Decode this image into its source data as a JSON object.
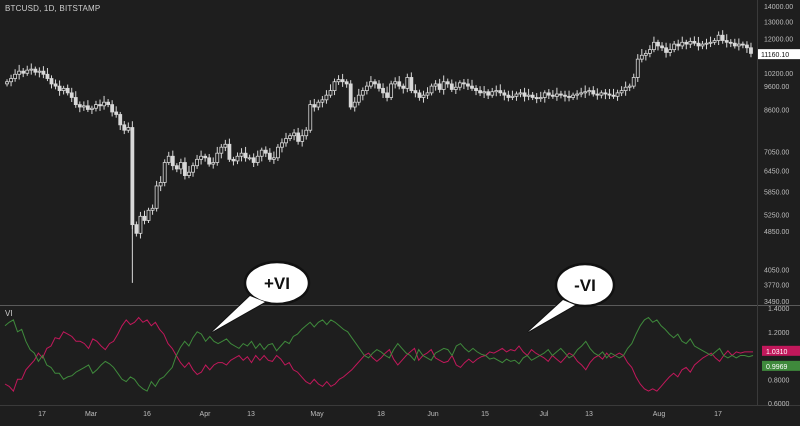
{
  "header": {
    "symbol": "BTCUSD, 1D, BITSTAMP"
  },
  "indicator": {
    "label": "VI"
  },
  "callouts": {
    "plus": "+VI",
    "minus": "-VI"
  },
  "colors": {
    "background": "#1e1e1e",
    "candle": "#d8d8d8",
    "plus_vi": "#3f8a3c",
    "minus_vi": "#c2185b",
    "price_badge": "#ffffff",
    "axis_text": "#bdbdbd",
    "separator": "#5a5a5a"
  },
  "chart_data": [
    {
      "type": "candlestick",
      "title": "BTCUSD, 1D, BITSTAMP",
      "scale": "log",
      "ylim": [
        3490,
        14000
      ],
      "yticks": [
        "14000.00",
        "13000.00",
        "12000.00",
        "10200.00",
        "9600.00",
        "8600.00",
        "7050.00",
        "6450.00",
        "5850.00",
        "5250.00",
        "4850.00",
        "4050.00",
        "3770.00",
        "3490.00"
      ],
      "last_price": "11160.10",
      "x_tick_labels": [
        "17",
        "Mar",
        "16",
        "Apr",
        "13",
        "May",
        "18",
        "Jun",
        "15",
        "Jul",
        "13",
        "Aug",
        "17"
      ],
      "x_range_days": [
        "2020-02-06",
        "2020-08-23"
      ],
      "closes": [
        9800,
        9950,
        10150,
        10300,
        10200,
        10350,
        10400,
        10250,
        10300,
        10150,
        9950,
        9700,
        9600,
        9400,
        9500,
        9300,
        9100,
        8800,
        8700,
        8750,
        8600,
        8650,
        8800,
        8750,
        8900,
        8800,
        8500,
        8400,
        8000,
        7800,
        7900,
        5000,
        4800,
        5200,
        5100,
        5350,
        5400,
        6000,
        6100,
        6700,
        6900,
        6600,
        6500,
        6700,
        6300,
        6400,
        6600,
        6800,
        6900,
        6850,
        6650,
        6700,
        7000,
        7200,
        7300,
        6800,
        6750,
        6900,
        7000,
        6850,
        6850,
        6700,
        6900,
        7100,
        7000,
        6800,
        6850,
        7200,
        7350,
        7500,
        7600,
        7700,
        7400,
        7600,
        7800,
        8800,
        8700,
        8900,
        9000,
        9200,
        9400,
        9800,
        9900,
        9800,
        9700,
        8700,
        8900,
        9200,
        9400,
        9600,
        9800,
        9700,
        9500,
        9300,
        9100,
        9700,
        9800,
        9600,
        9500,
        10000,
        9400,
        9300,
        9100,
        9200,
        9300,
        9600,
        9700,
        9450,
        9800,
        9700,
        9450,
        9550,
        9750,
        9700,
        9600,
        9500,
        9400,
        9300,
        9350,
        9200,
        9350,
        9400,
        9300,
        9200,
        9100,
        9150,
        9250,
        9300,
        9150,
        9200,
        9100,
        9050,
        9100,
        9300,
        9200,
        9150,
        9250,
        9200,
        9150,
        9100,
        9200,
        9250,
        9300,
        9350,
        9400,
        9250,
        9200,
        9300,
        9250,
        9200,
        9150,
        9300,
        9400,
        9550,
        9600,
        10000,
        10900,
        11100,
        11200,
        11400,
        11800,
        11600,
        11500,
        11250,
        11400,
        11700,
        11600,
        11800,
        11700,
        11850,
        11750,
        11600,
        11700,
        11750,
        11800,
        11900,
        12200,
        11900,
        11800,
        11750,
        11600,
        11700,
        11650,
        11500,
        11200
      ]
    },
    {
      "type": "line",
      "title": "VI",
      "ylim": [
        0.6,
        1.4
      ],
      "yticks": [
        "1.4000",
        "1.2000",
        "0.8000",
        "0.6000"
      ],
      "last_values": {
        "minus": "1.0310",
        "plus": "0.9969"
      },
      "series": [
        {
          "name": "+VI",
          "values": [
            1.25,
            1.28,
            1.3,
            1.2,
            1.22,
            1.12,
            1.05,
            1.02,
            0.95,
            1.0,
            0.92,
            0.9,
            0.85,
            0.85,
            0.8,
            0.82,
            0.83,
            0.86,
            0.88,
            0.9,
            0.92,
            0.85,
            0.88,
            0.92,
            0.95,
            0.93,
            0.9,
            0.85,
            0.8,
            0.78,
            0.82,
            0.8,
            0.75,
            0.72,
            0.7,
            0.78,
            0.74,
            0.8,
            0.82,
            0.86,
            0.9,
            1.0,
            1.07,
            1.12,
            1.08,
            1.15,
            1.2,
            1.18,
            1.12,
            1.16,
            1.12,
            1.1,
            1.12,
            1.14,
            1.1,
            1.08,
            1.06,
            1.1,
            1.08,
            1.12,
            1.06,
            1.1,
            1.05,
            1.09,
            1.1,
            1.04,
            1.08,
            1.12,
            1.1,
            1.16,
            1.18,
            1.22,
            1.25,
            1.28,
            1.24,
            1.28,
            1.3,
            1.26,
            1.3,
            1.28,
            1.25,
            1.22,
            1.2,
            1.15,
            1.1,
            1.05,
            1.0,
            0.98,
            1.02,
            1.05,
            1.03,
            1.0,
            0.98,
            1.05,
            1.1,
            1.06,
            1.02,
            1.0,
            0.96,
            1.05,
            1.0,
            0.98,
            0.96,
            1.02,
            1.04,
            1.06,
            1.05,
            1.0,
            1.08,
            1.1,
            1.06,
            1.03,
            1.06,
            1.03,
            1.01,
            1.0,
            0.97,
            0.98,
            0.96,
            0.94,
            0.97,
            0.95,
            0.96,
            0.93,
            0.98,
            1.0,
            0.96,
            0.98,
            1.0,
            1.02,
            1.05,
            1.0,
            1.03,
            1.06,
            1.02,
            0.98,
            1.0,
            1.05,
            1.08,
            1.12,
            1.06,
            1.02,
            1.0,
            1.03,
            0.98,
            1.02,
            1.0,
            0.98,
            1.0,
            1.06,
            1.1,
            1.18,
            1.25,
            1.3,
            1.32,
            1.28,
            1.3,
            1.25,
            1.22,
            1.18,
            1.15,
            1.18,
            1.12,
            1.1,
            1.14,
            1.08,
            1.06,
            1.04,
            1.02,
            1.0,
            1.03,
            1.06,
            1.0,
            0.98,
            1.0,
            0.98,
            1.0,
            1.0,
            0.99,
            1.0
          ]
        },
        {
          "name": "-VI",
          "values": [
            0.76,
            0.74,
            0.7,
            0.8,
            0.8,
            0.88,
            0.92,
            0.96,
            1.02,
            0.98,
            1.06,
            1.08,
            1.15,
            1.14,
            1.2,
            1.18,
            1.16,
            1.12,
            1.12,
            1.1,
            1.06,
            1.14,
            1.12,
            1.08,
            1.05,
            1.1,
            1.12,
            1.18,
            1.25,
            1.3,
            1.26,
            1.28,
            1.32,
            1.28,
            1.3,
            1.25,
            1.28,
            1.22,
            1.18,
            1.1,
            1.06,
            1.0,
            0.94,
            0.9,
            0.94,
            0.88,
            0.84,
            0.86,
            0.92,
            0.88,
            0.92,
            0.94,
            0.94,
            0.92,
            0.96,
            0.98,
            1.0,
            0.96,
            0.99,
            0.94,
            1.0,
            0.96,
            1.0,
            0.96,
            0.95,
            1.0,
            0.97,
            0.92,
            0.94,
            0.88,
            0.86,
            0.82,
            0.78,
            0.76,
            0.8,
            0.76,
            0.74,
            0.78,
            0.74,
            0.76,
            0.8,
            0.82,
            0.85,
            0.88,
            0.92,
            0.96,
            1.0,
            1.02,
            0.98,
            0.95,
            0.98,
            1.02,
            1.05,
            0.97,
            0.92,
            0.96,
            1.0,
            1.03,
            1.06,
            0.96,
            1.0,
            1.02,
            1.05,
            0.98,
            0.96,
            0.94,
            0.95,
            1.0,
            0.92,
            0.9,
            0.94,
            0.97,
            0.94,
            0.97,
            0.99,
            1.0,
            1.03,
            1.02,
            1.04,
            1.06,
            1.03,
            1.05,
            1.04,
            1.08,
            1.03,
            1.0,
            1.05,
            1.02,
            1.0,
            0.98,
            0.95,
            1.0,
            0.97,
            0.94,
            0.98,
            1.02,
            1.0,
            0.95,
            0.92,
            0.88,
            0.94,
            0.98,
            1.0,
            0.97,
            1.02,
            0.98,
            1.0,
            1.02,
            1.0,
            0.94,
            0.9,
            0.82,
            0.76,
            0.72,
            0.7,
            0.72,
            0.7,
            0.74,
            0.78,
            0.82,
            0.85,
            0.82,
            0.88,
            0.9,
            0.86,
            0.92,
            0.95,
            0.98,
            1.0,
            1.02,
            0.98,
            0.95,
            1.0,
            1.04,
            1.0,
            1.03,
            1.02,
            1.03,
            1.03,
            1.03
          ]
        }
      ]
    }
  ]
}
